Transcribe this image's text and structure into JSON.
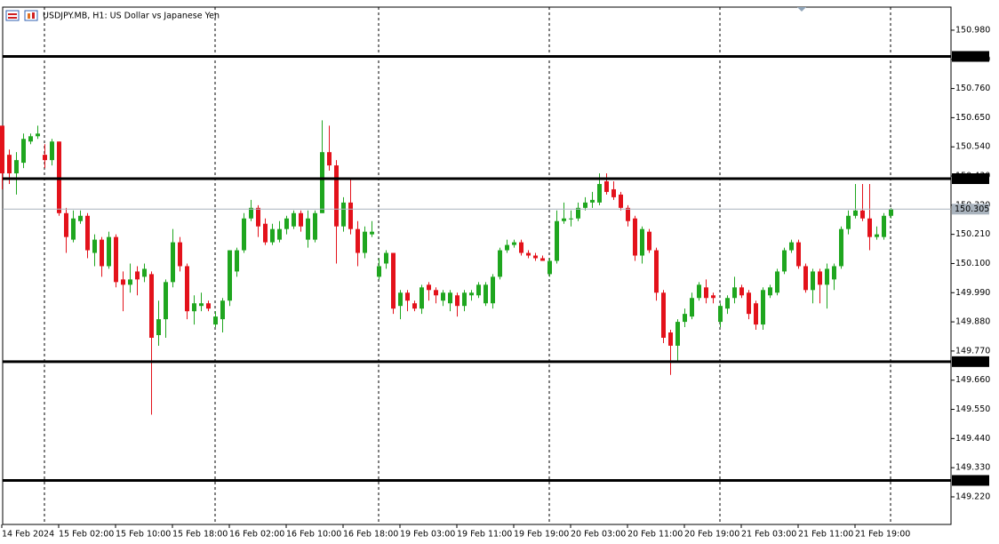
{
  "chart_data": {
    "type": "candlestick",
    "title": "USDJPY.MB, H1:  US Dollar vs Japanese Yen",
    "up_color": "#1fa61f",
    "down_color": "#e3121b",
    "categories": [
      "14 Feb 2024",
      null,
      null,
      null,
      null,
      null,
      null,
      null,
      "15 Feb 02:00",
      null,
      null,
      null,
      null,
      null,
      null,
      null,
      "15 Feb 10:00",
      null,
      null,
      null,
      null,
      null,
      null,
      null,
      "15 Feb 18:00",
      null,
      null,
      null,
      null,
      null,
      null,
      null,
      "16 Feb 02:00",
      null,
      null,
      null,
      null,
      null,
      null,
      null,
      "16 Feb 10:00",
      null,
      null,
      null,
      null,
      null,
      null,
      null,
      "16 Feb 18:00",
      null,
      null,
      null,
      null,
      null,
      null,
      null,
      "19 Feb 03:00",
      null,
      null,
      null,
      null,
      null,
      null,
      null,
      "19 Feb 11:00",
      null,
      null,
      null,
      null,
      null,
      null,
      null,
      "19 Feb 19:00",
      null,
      null,
      null,
      null,
      null,
      null,
      null,
      "20 Feb 03:00",
      null,
      null,
      null,
      null,
      null,
      null,
      null,
      "20 Feb 11:00",
      null,
      null,
      null,
      null,
      null,
      null,
      null,
      "20 Feb 19:00",
      null,
      null,
      null,
      null,
      null,
      null,
      null,
      "21 Feb 03:00",
      null,
      null,
      null,
      null,
      null,
      null,
      null,
      "21 Feb 11:00",
      null,
      null,
      null,
      null,
      null,
      null,
      null,
      "21 Feb 19:00",
      null,
      null,
      null,
      null,
      null
    ],
    "open": [
      150.62,
      150.51,
      150.44,
      150.48,
      150.56,
      150.58,
      150.51,
      150.49,
      150.56,
      150.29,
      150.19,
      150.26,
      150.28,
      150.14,
      150.19,
      150.09,
      150.2,
      150.04,
      150.02,
      150.07,
      150.05,
      150.06,
      149.83,
      149.89,
      150.03,
      150.18,
      150.09,
      149.92,
      149.94,
      149.95,
      149.87,
      149.89,
      149.96,
      150.07,
      150.15,
      150.27,
      150.31,
      150.25,
      150.18,
      150.19,
      150.23,
      150.24,
      150.29,
      150.19,
      150.19,
      150.29,
      150.52,
      150.47,
      150.24,
      150.33,
      150.23,
      150.14,
      150.21,
      150.05,
      150.1,
      150.14,
      149.94,
      149.99,
      149.95,
      149.93,
      150.02,
      150.0,
      149.96,
      149.95,
      149.98,
      149.94,
      149.98,
      149.98,
      149.95,
      149.95,
      150.05,
      150.15,
      150.17,
      150.18,
      150.14,
      150.13,
      150.12,
      150.06,
      150.11,
      150.26,
      150.27,
      150.27,
      150.31,
      150.33,
      150.33,
      150.41,
      150.38,
      150.36,
      150.31,
      150.27,
      150.13,
      150.22,
      150.15,
      149.99,
      149.84,
      149.79,
      149.88,
      149.9,
      149.97,
      150.01,
      149.98,
      149.88,
      149.93,
      149.97,
      150.01,
      149.99,
      149.95,
      149.87,
      149.98,
      149.99,
      150.07,
      150.15,
      150.18,
      150.09,
      150.0,
      150.07,
      150.02,
      150.04,
      150.09,
      150.23,
      150.28,
      150.3,
      150.27,
      150.2,
      150.2,
      150.28
    ],
    "high": [
      150.62,
      150.53,
      150.52,
      150.59,
      150.59,
      150.62,
      150.55,
      150.57,
      150.56,
      150.31,
      150.3,
      150.3,
      150.29,
      150.21,
      150.2,
      150.22,
      150.21,
      150.07,
      150.1,
      150.09,
      150.1,
      150.07,
      149.96,
      150.04,
      150.23,
      150.2,
      150.1,
      149.98,
      149.99,
      149.96,
      149.92,
      149.97,
      150.15,
      150.16,
      150.29,
      150.34,
      150.32,
      150.27,
      150.25,
      150.26,
      150.28,
      150.3,
      150.3,
      150.3,
      150.3,
      150.64,
      150.62,
      150.49,
      150.35,
      150.42,
      150.26,
      150.24,
      150.26,
      150.12,
      150.15,
      150.14,
      150.0,
      150.0,
      149.96,
      150.02,
      150.03,
      150.01,
      150.0,
      150.0,
      149.99,
      150.0,
      150.0,
      150.03,
      150.03,
      150.06,
      150.16,
      150.19,
      150.19,
      150.19,
      150.15,
      150.14,
      150.13,
      150.12,
      150.3,
      150.33,
      150.3,
      150.33,
      150.35,
      150.37,
      150.44,
      150.44,
      150.41,
      150.37,
      150.32,
      150.28,
      150.24,
      150.23,
      150.16,
      150.0,
      149.85,
      149.89,
      149.93,
      149.99,
      150.03,
      150.04,
      149.99,
      149.95,
      149.98,
      150.05,
      150.02,
      150.0,
      149.96,
      150.01,
      150.02,
      150.08,
      150.16,
      150.19,
      150.19,
      150.1,
      150.08,
      150.08,
      150.1,
      150.1,
      150.24,
      150.3,
      150.4,
      150.4,
      150.4,
      150.24,
      150.29,
      150.31
    ],
    "low": [
      150.38,
      150.4,
      150.36,
      150.46,
      150.55,
      150.57,
      150.46,
      150.47,
      150.28,
      150.14,
      150.18,
      150.25,
      150.12,
      150.09,
      150.05,
      150.08,
      150.01,
      149.92,
      149.99,
      149.98,
      150.03,
      149.53,
      149.79,
      149.82,
      150.01,
      150.07,
      149.89,
      149.87,
      149.92,
      149.92,
      149.86,
      149.84,
      149.94,
      150.05,
      150.14,
      150.26,
      150.2,
      150.17,
      150.17,
      150.18,
      150.21,
      150.23,
      150.22,
      150.16,
      150.18,
      150.29,
      150.45,
      150.1,
      150.22,
      150.21,
      150.09,
      150.12,
      150.2,
      150.04,
      150.08,
      149.91,
      149.89,
      149.92,
      149.92,
      149.91,
      149.96,
      149.95,
      149.94,
      149.92,
      149.9,
      149.92,
      149.96,
      149.97,
      149.94,
      149.93,
      150.04,
      150.14,
      150.16,
      150.13,
      150.12,
      150.11,
      150.11,
      150.05,
      150.1,
      150.25,
      150.24,
      150.26,
      150.3,
      150.31,
      150.32,
      150.36,
      150.34,
      150.3,
      150.24,
      150.11,
      150.1,
      150.14,
      149.96,
      149.8,
      149.68,
      149.73,
      149.86,
      149.89,
      149.96,
      149.95,
      149.95,
      149.86,
      149.91,
      149.95,
      149.97,
      149.89,
      149.85,
      149.85,
      149.97,
      149.98,
      150.06,
      150.14,
      150.08,
      149.99,
      149.95,
      149.95,
      149.93,
      150.0,
      150.08,
      150.21,
      150.27,
      150.26,
      150.15,
      150.19,
      150.19,
      150.27
    ],
    "close": [
      150.44,
      150.44,
      150.49,
      150.57,
      150.58,
      150.59,
      150.49,
      150.56,
      150.29,
      150.2,
      150.27,
      150.28,
      150.15,
      150.19,
      150.09,
      150.2,
      150.03,
      150.02,
      150.04,
      150.04,
      150.08,
      149.82,
      149.89,
      150.03,
      150.18,
      150.09,
      149.92,
      149.95,
      149.95,
      149.93,
      149.9,
      149.96,
      150.15,
      150.15,
      150.27,
      150.31,
      150.24,
      150.18,
      150.23,
      150.23,
      150.27,
      150.29,
      150.24,
      150.27,
      150.29,
      150.52,
      150.47,
      150.24,
      150.33,
      150.23,
      150.14,
      150.22,
      150.22,
      150.09,
      150.14,
      149.93,
      149.99,
      149.96,
      149.93,
      150.01,
      150.0,
      149.98,
      149.99,
      149.99,
      149.94,
      149.99,
      149.99,
      150.02,
      150.02,
      150.05,
      150.15,
      150.17,
      150.18,
      150.14,
      150.13,
      150.12,
      150.11,
      150.11,
      150.26,
      150.27,
      150.27,
      150.31,
      150.33,
      150.34,
      150.4,
      150.37,
      150.35,
      150.31,
      150.26,
      150.13,
      150.23,
      150.15,
      149.99,
      149.82,
      149.79,
      149.88,
      149.91,
      149.97,
      150.02,
      149.97,
      149.97,
      149.94,
      149.97,
      150.01,
      149.98,
      149.91,
      149.87,
      150.0,
      150.01,
      150.07,
      150.15,
      150.18,
      150.09,
      150.0,
      150.07,
      150.02,
      150.08,
      150.09,
      150.23,
      150.28,
      150.3,
      150.27,
      150.2,
      150.21,
      150.28,
      150.305
    ],
    "ylim": [
      149.116,
      151.067
    ],
    "yticks": [
      {
        "value": 150.98,
        "label": "150.980"
      },
      {
        "value": 150.87,
        "label": "150.870"
      },
      {
        "value": 150.76,
        "label": "150.760"
      },
      {
        "value": 150.65,
        "label": "150.650"
      },
      {
        "value": 150.54,
        "label": "150.540"
      },
      {
        "value": 150.43,
        "label": "150.430"
      },
      {
        "value": 150.32,
        "label": "150.320"
      },
      {
        "value": 150.21,
        "label": "150.210"
      },
      {
        "value": 150.1,
        "label": "150.100"
      },
      {
        "value": 149.99,
        "label": "149.990"
      },
      {
        "value": 149.88,
        "label": "149.880"
      },
      {
        "value": 149.77,
        "label": "149.770"
      },
      {
        "value": 149.66,
        "label": "149.660"
      },
      {
        "value": 149.55,
        "label": "149.550"
      },
      {
        "value": 149.44,
        "label": "149.440"
      },
      {
        "value": 149.33,
        "label": "149.330"
      },
      {
        "value": 149.22,
        "label": "149.220"
      }
    ],
    "levels": [
      {
        "value": 150.881,
        "label": "150.881"
      },
      {
        "value": 150.42,
        "label": "150.420"
      },
      {
        "value": 149.73,
        "label": "149.730"
      },
      {
        "value": 149.282,
        "label": "149.282"
      }
    ],
    "last_price": 150.305
  }
}
